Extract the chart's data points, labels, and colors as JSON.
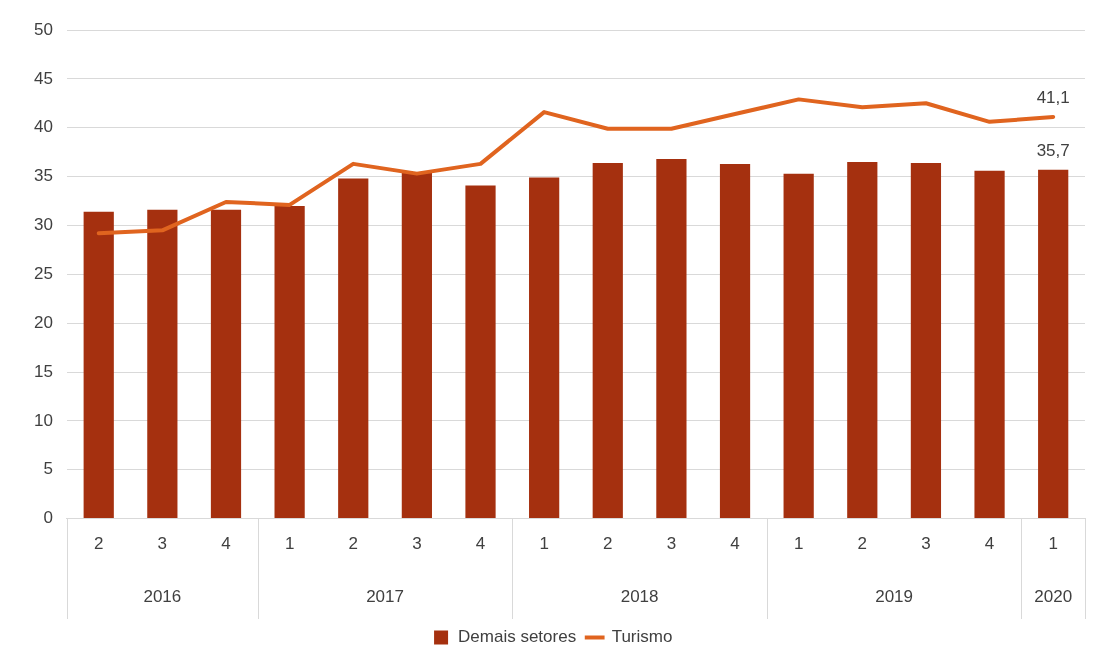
{
  "chart_data": {
    "type": "bar",
    "categories": [
      "2",
      "3",
      "4",
      "1",
      "2",
      "3",
      "4",
      "1",
      "2",
      "3",
      "4",
      "1",
      "2",
      "3",
      "4",
      "1"
    ],
    "series": [
      {
        "name": "Demais setores",
        "color": "#a5300f",
        "values": [
          31.4,
          31.6,
          31.6,
          32.0,
          34.8,
          35.4,
          34.1,
          34.9,
          36.4,
          36.8,
          36.3,
          35.3,
          36.5,
          36.4,
          35.6,
          35.7
        ],
        "value_labels": [
          null,
          null,
          null,
          null,
          null,
          null,
          null,
          null,
          null,
          null,
          null,
          null,
          null,
          null,
          null,
          "35,7"
        ]
      },
      {
        "name": "Turismo",
        "type": "line",
        "color": "#e0641f",
        "values": [
          29.2,
          29.5,
          32.4,
          32.1,
          36.3,
          35.3,
          36.3,
          41.6,
          39.9,
          39.9,
          41.4,
          42.9,
          42.1,
          42.5,
          40.6,
          41.1
        ],
        "value_labels": [
          null,
          null,
          null,
          null,
          null,
          null,
          null,
          null,
          null,
          null,
          null,
          null,
          null,
          null,
          null,
          "41,1"
        ]
      }
    ],
    "annotations": [
      "2016",
      "2017",
      "2018",
      "2019",
      "2020"
    ],
    "ylim": [
      0,
      50
    ],
    "yticks": [
      0,
      5,
      10,
      15,
      20,
      25,
      30,
      35,
      40,
      45,
      50
    ],
    "grid": "y",
    "legend": "bottom",
    "marker": "none"
  }
}
